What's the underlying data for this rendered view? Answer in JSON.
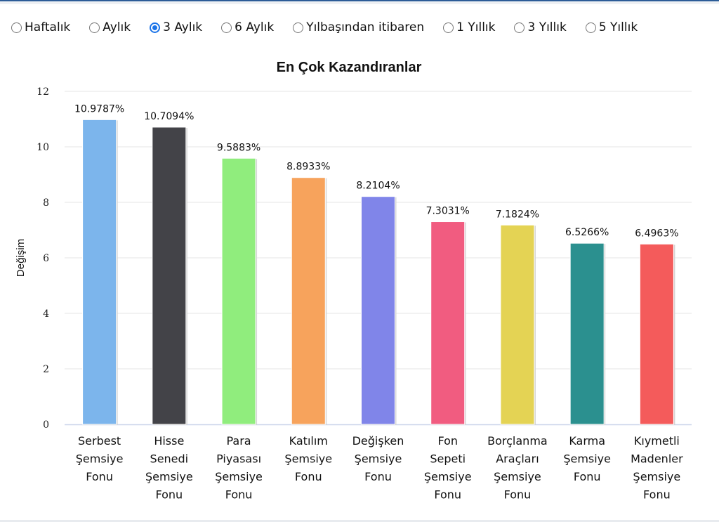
{
  "period_options": [
    {
      "label": "Haftalık",
      "checked": false
    },
    {
      "label": "Aylık",
      "checked": false
    },
    {
      "label": "3 Aylık",
      "checked": true
    },
    {
      "label": "6 Aylık",
      "checked": false
    },
    {
      "label": "Yılbaşından itibaren",
      "checked": false
    },
    {
      "label": "1 Yıllık",
      "checked": false
    },
    {
      "label": "3 Yıllık",
      "checked": false
    },
    {
      "label": "5 Yıllık",
      "checked": false
    }
  ],
  "chart_data": {
    "type": "bar",
    "title": "En Çok Kazandıranlar",
    "xlabel": "",
    "ylabel": "Değişim",
    "ylim": [
      0,
      12
    ],
    "yticks": [
      0,
      2,
      4,
      6,
      8,
      10,
      12
    ],
    "grid": true,
    "categories": [
      [
        "Serbest",
        "Şemsiye",
        "Fonu"
      ],
      [
        "Hisse",
        "Senedi",
        "Şemsiye",
        "Fonu"
      ],
      [
        "Para",
        "Piyasası",
        "Şemsiye",
        "Fonu"
      ],
      [
        "Katılım",
        "Şemsiye",
        "Fonu"
      ],
      [
        "Değişken",
        "Şemsiye",
        "Fonu"
      ],
      [
        "Fon",
        "Sepeti",
        "Şemsiye",
        "Fonu"
      ],
      [
        "Borçlanma",
        "Araçları",
        "Şemsiye",
        "Fonu"
      ],
      [
        "Karma",
        "Şemsiye",
        "Fonu"
      ],
      [
        "Kıymetli",
        "Madenler",
        "Şemsiye",
        "Fonu"
      ]
    ],
    "values": [
      10.9787,
      10.7094,
      9.5883,
      8.8933,
      8.2104,
      7.3031,
      7.1824,
      6.5266,
      6.4963
    ],
    "data_labels": [
      "10.9787%",
      "10.7094%",
      "9.5883%",
      "8.8933%",
      "8.2104%",
      "7.3031%",
      "7.1824%",
      "6.5266%",
      "6.4963%"
    ],
    "colors": [
      "#7cb5ec",
      "#434348",
      "#90ed7d",
      "#f7a35c",
      "#8085e9",
      "#f15c80",
      "#e4d354",
      "#2b908f",
      "#f45b5b"
    ]
  }
}
